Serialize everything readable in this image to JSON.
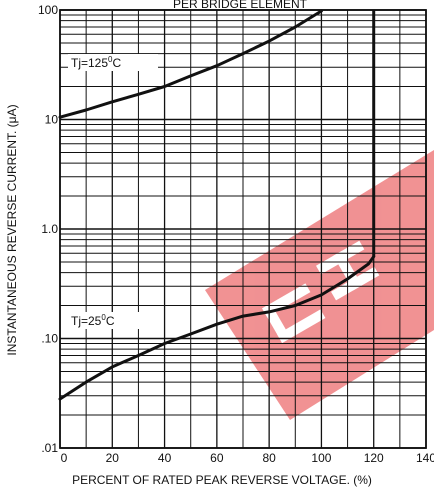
{
  "chart_data": {
    "type": "line",
    "title": "PER BRIDGE ELEMENT",
    "xlabel": "PERCENT OF RATED PEAK REVERSE VOLTAGE. (%)",
    "ylabel": "INSTANTANEOUS REVERSE CURRENT. (μA)",
    "xlim": [
      0,
      140
    ],
    "ylim": [
      0.01,
      100
    ],
    "yscale": "log",
    "grid": true,
    "x_ticks": [
      "0",
      "20",
      "40",
      "60",
      "80",
      "100",
      "120",
      "140"
    ],
    "y_ticks": [
      {
        "value": 100,
        "label": "100"
      },
      {
        "value": 10,
        "label": "10"
      },
      {
        "value": 1,
        "label": "1.0"
      },
      {
        "value": 0.1,
        "label": ".10"
      },
      {
        "value": 0.01,
        "label": ".01"
      }
    ],
    "series": [
      {
        "name": "Tj=125°C",
        "label_text": "Tj=125",
        "label_sup": "0",
        "label_unit": "C",
        "x": [
          0,
          10,
          20,
          30,
          40,
          50,
          60,
          70,
          80,
          90,
          100
        ],
        "y": [
          10.5,
          12.2,
          14.5,
          17.0,
          20.0,
          25.0,
          31.0,
          40.0,
          52.0,
          70.0,
          98.0
        ]
      },
      {
        "name": "Tj=25°C",
        "label_text": "Tj=25",
        "label_sup": "0",
        "label_unit": "C",
        "x": [
          0,
          10,
          20,
          30,
          40,
          50,
          60,
          70,
          80,
          90,
          100,
          110,
          118,
          120
        ],
        "y": [
          0.028,
          0.04,
          0.055,
          0.07,
          0.09,
          0.11,
          0.135,
          0.16,
          0.175,
          0.2,
          0.25,
          0.35,
          0.48,
          0.56
        ]
      }
    ],
    "vertical_line": {
      "x": 120,
      "y_from": 0.56,
      "y_to": 100
    },
    "colors": {
      "curve": "#111111",
      "grid": "#111111",
      "watermark": "#e5383b"
    }
  },
  "watermark": {
    "type": "logo",
    "color": "#e5383b"
  }
}
